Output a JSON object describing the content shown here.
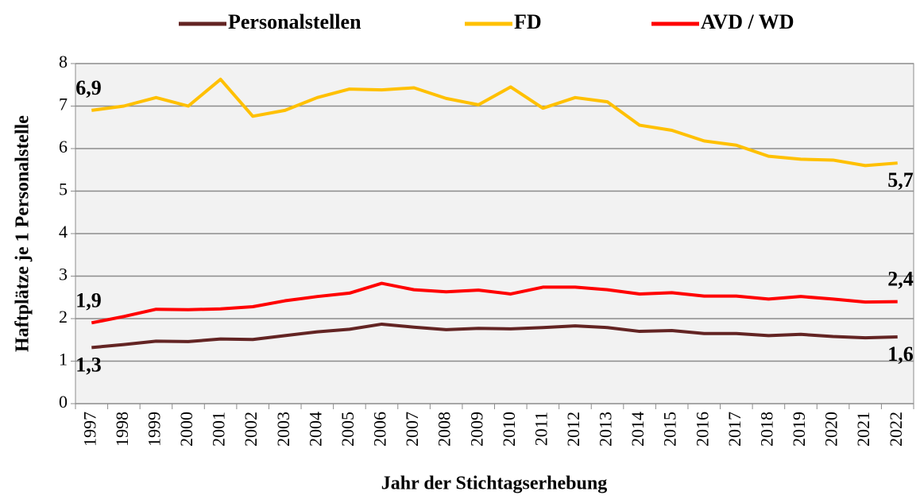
{
  "chart_data": {
    "type": "line",
    "x_label": "Jahr der Stichtagserhebung",
    "y_label": "Haftplätze je 1 Personalstelle",
    "categories": [
      "1997",
      "1998",
      "1999",
      "2000",
      "2001",
      "2002",
      "2003",
      "2004",
      "2005",
      "2006",
      "2007",
      "2008",
      "2009",
      "2010",
      "2011",
      "2012",
      "2013",
      "2014",
      "2015",
      "2016",
      "2017",
      "2018",
      "2019",
      "2020",
      "2021",
      "2022"
    ],
    "series": [
      {
        "name": "Personalstellen",
        "color": "#632423",
        "values": [
          1.32,
          1.39,
          1.47,
          1.46,
          1.52,
          1.51,
          1.6,
          1.69,
          1.75,
          1.87,
          1.8,
          1.74,
          1.77,
          1.76,
          1.79,
          1.83,
          1.79,
          1.7,
          1.72,
          1.65,
          1.65,
          1.6,
          1.63,
          1.58,
          1.55,
          1.57
        ],
        "value_labels": [
          "1,3",
          null,
          null,
          null,
          null,
          null,
          null,
          null,
          null,
          null,
          null,
          null,
          null,
          null,
          null,
          null,
          null,
          null,
          null,
          null,
          null,
          null,
          null,
          null,
          null,
          "1,6"
        ]
      },
      {
        "name": "FD",
        "color": "#ffc000",
        "values": [
          6.9,
          7.0,
          7.2,
          7.0,
          7.63,
          6.76,
          6.9,
          7.2,
          7.4,
          7.38,
          7.43,
          7.18,
          7.03,
          7.45,
          6.95,
          7.2,
          7.1,
          6.55,
          6.43,
          6.18,
          6.08,
          5.82,
          5.75,
          5.73,
          5.6,
          5.66
        ],
        "value_labels": [
          "6,9",
          null,
          null,
          null,
          null,
          null,
          null,
          null,
          null,
          null,
          null,
          null,
          null,
          null,
          null,
          null,
          null,
          null,
          null,
          null,
          null,
          null,
          null,
          null,
          null,
          "5,7"
        ]
      },
      {
        "name": "AVD / WD",
        "color": "#ff0000",
        "values": [
          1.9,
          2.05,
          2.22,
          2.21,
          2.23,
          2.28,
          2.42,
          2.52,
          2.6,
          2.83,
          2.68,
          2.63,
          2.67,
          2.58,
          2.74,
          2.74,
          2.68,
          2.58,
          2.61,
          2.53,
          2.53,
          2.46,
          2.52,
          2.46,
          2.39,
          2.4
        ],
        "value_labels": [
          "1,9",
          null,
          null,
          null,
          null,
          null,
          null,
          null,
          null,
          null,
          null,
          null,
          null,
          null,
          null,
          null,
          null,
          null,
          null,
          null,
          null,
          null,
          null,
          null,
          null,
          "2,4"
        ]
      }
    ],
    "ylim": [
      0,
      8
    ],
    "yticks": [
      0,
      1,
      2,
      3,
      4,
      5,
      6,
      7,
      8
    ],
    "grid": true,
    "legend": "top"
  }
}
